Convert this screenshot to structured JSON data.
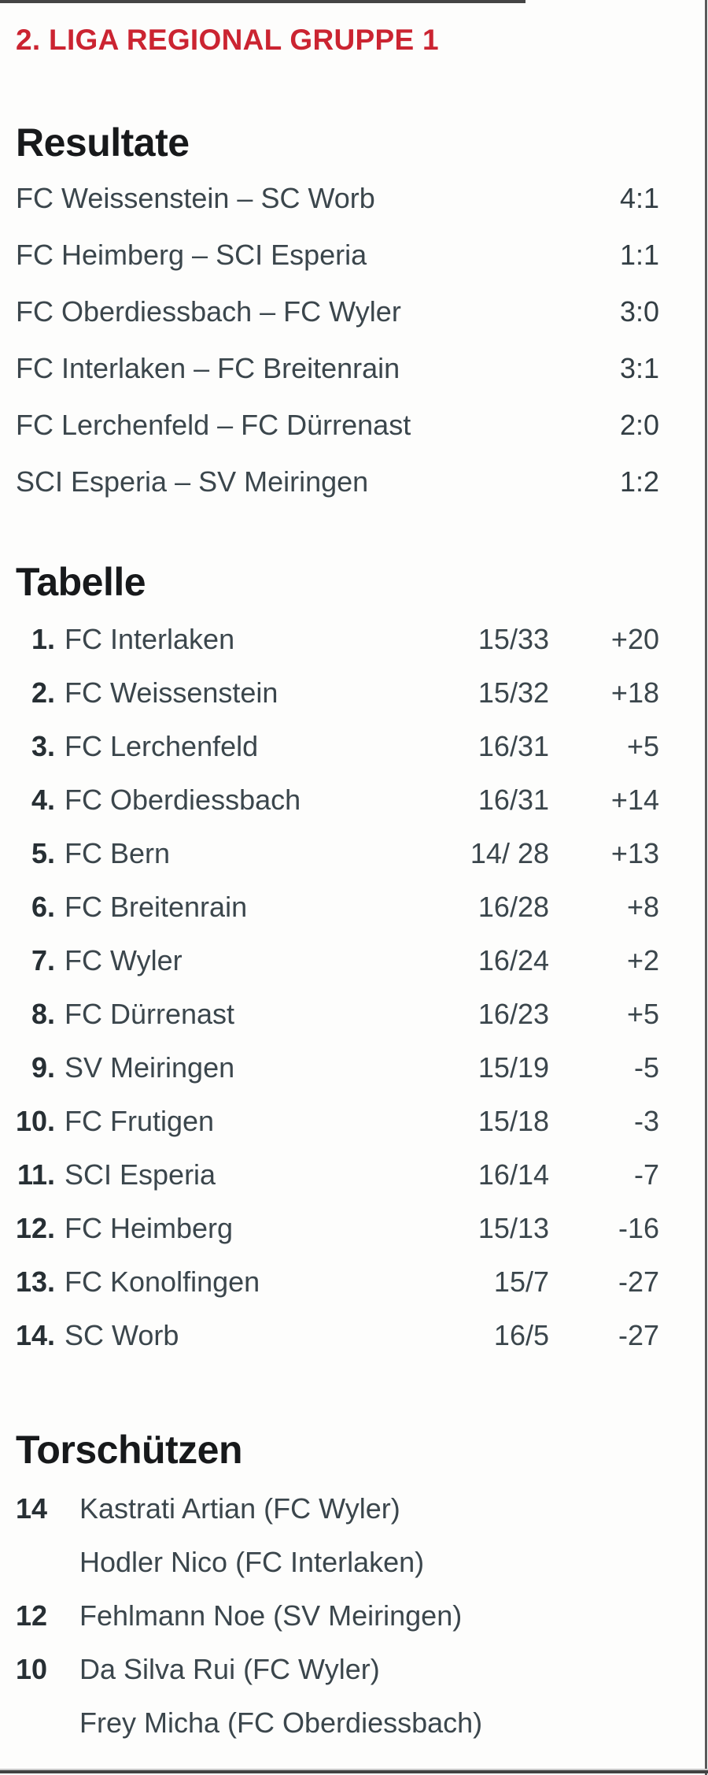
{
  "header": {
    "title": "2. LIGA REGIONAL GRUPPE 1"
  },
  "results": {
    "heading": "Resultate",
    "matches": [
      {
        "fixture": "FC Weissenstein – SC Worb",
        "score": "4:1"
      },
      {
        "fixture": "FC Heimberg – SCI Esperia",
        "score": "1:1"
      },
      {
        "fixture": "FC Oberdiessbach – FC Wyler",
        "score": "3:0"
      },
      {
        "fixture": "FC Interlaken – FC Breitenrain",
        "score": "3:1"
      },
      {
        "fixture": "FC Lerchenfeld – FC Dürrenast",
        "score": "2:0"
      },
      {
        "fixture": "SCI Esperia – SV Meiringen",
        "score": "1:2"
      }
    ]
  },
  "table": {
    "heading": "Tabelle",
    "rows": [
      {
        "rank": "1.",
        "team": "FC Interlaken",
        "games_points": "15/33",
        "diff": "+20"
      },
      {
        "rank": "2.",
        "team": "FC Weissenstein",
        "games_points": "15/32",
        "diff": "+18"
      },
      {
        "rank": "3.",
        "team": "FC Lerchenfeld",
        "games_points": "16/31",
        "diff": "+5"
      },
      {
        "rank": "4.",
        "team": "FC Oberdiessbach",
        "games_points": "16/31",
        "diff": "+14"
      },
      {
        "rank": "5.",
        "team": "FC Bern",
        "games_points": "14/ 28",
        "diff": "+13"
      },
      {
        "rank": "6.",
        "team": "FC Breitenrain",
        "games_points": "16/28",
        "diff": "+8"
      },
      {
        "rank": "7.",
        "team": "FC Wyler",
        "games_points": "16/24",
        "diff": "+2"
      },
      {
        "rank": "8.",
        "team": "FC Dürrenast",
        "games_points": "16/23",
        "diff": "+5"
      },
      {
        "rank": "9.",
        "team": "SV Meiringen",
        "games_points": "15/19",
        "diff": "-5"
      },
      {
        "rank": "10.",
        "team": "FC Frutigen",
        "games_points": "15/18",
        "diff": "-3"
      },
      {
        "rank": "11.",
        "team": "SCI Esperia",
        "games_points": "16/14",
        "diff": "-7"
      },
      {
        "rank": "12.",
        "team": "FC Heimberg",
        "games_points": "15/13",
        "diff": "-16"
      },
      {
        "rank": "13.",
        "team": "FC Konolfingen",
        "games_points": "15/7",
        "diff": "-27"
      },
      {
        "rank": "14.",
        "team": "SC Worb",
        "games_points": "16/5",
        "diff": "-27"
      }
    ]
  },
  "scorers": {
    "heading": "Torschützen",
    "rows": [
      {
        "goals": "14",
        "player": "Kastrati Artian (FC Wyler)"
      },
      {
        "goals": "",
        "player": "Hodler Nico (FC Interlaken)"
      },
      {
        "goals": "12",
        "player": "Fehlmann Noe (SV Meiringen)"
      },
      {
        "goals": "10",
        "player": "Da Silva Rui (FC Wyler)"
      },
      {
        "goals": "",
        "player": "Frey Micha (FC Oberdiessbach)"
      }
    ]
  },
  "colors": {
    "accent_red": "#cb2431",
    "text_dark": "#3b464c",
    "heading_dark": "#17191b",
    "border_gray": "#454545"
  }
}
